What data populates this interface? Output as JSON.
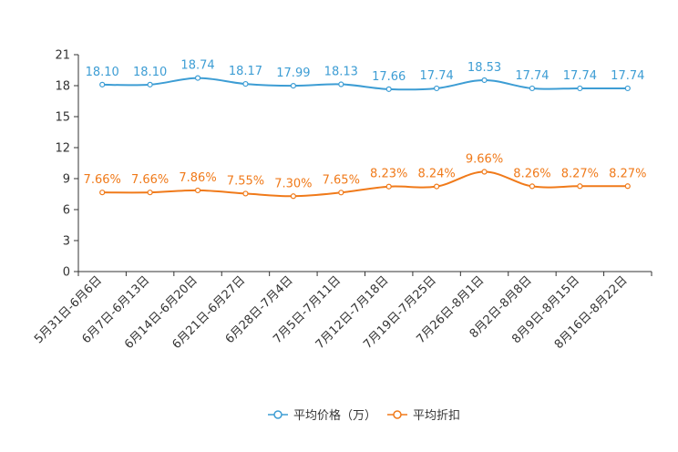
{
  "chart_data": {
    "type": "line",
    "categories": [
      "5月31日-6月6日",
      "6月7日-6月13日",
      "6月14日-6月20日",
      "6月21日-6月27日",
      "6月28日-7月4日",
      "7月5日-7月11日",
      "7月12日-7月18日",
      "7月19日-7月25日",
      "7月26日-8月1日",
      "8月2日-8月8日",
      "8月9日-8月15日",
      "8月16日-8月22日"
    ],
    "ylim": [
      0,
      21
    ],
    "yticks": [
      0,
      3,
      6,
      9,
      12,
      15,
      18,
      21
    ],
    "series": [
      {
        "name": "平均价格（万）",
        "color": "#3d9dd4",
        "values": [
          18.1,
          18.1,
          18.74,
          18.17,
          17.99,
          18.13,
          17.66,
          17.74,
          18.53,
          17.74,
          17.74,
          17.74
        ],
        "labels": [
          "18.10",
          "18.10",
          "18.74",
          "18.17",
          "17.99",
          "18.13",
          "17.66",
          "17.74",
          "18.53",
          "17.74",
          "17.74",
          "17.74"
        ]
      },
      {
        "name": "平均折扣",
        "color": "#f07a1a",
        "values": [
          7.66,
          7.66,
          7.86,
          7.55,
          7.3,
          7.65,
          8.23,
          8.24,
          9.66,
          8.26,
          8.27,
          8.27
        ],
        "labels": [
          "7.66%",
          "7.66%",
          "7.86%",
          "7.55%",
          "7.30%",
          "7.65%",
          "8.23%",
          "8.24%",
          "9.66%",
          "8.26%",
          "8.27%",
          "8.27%"
        ]
      }
    ]
  }
}
